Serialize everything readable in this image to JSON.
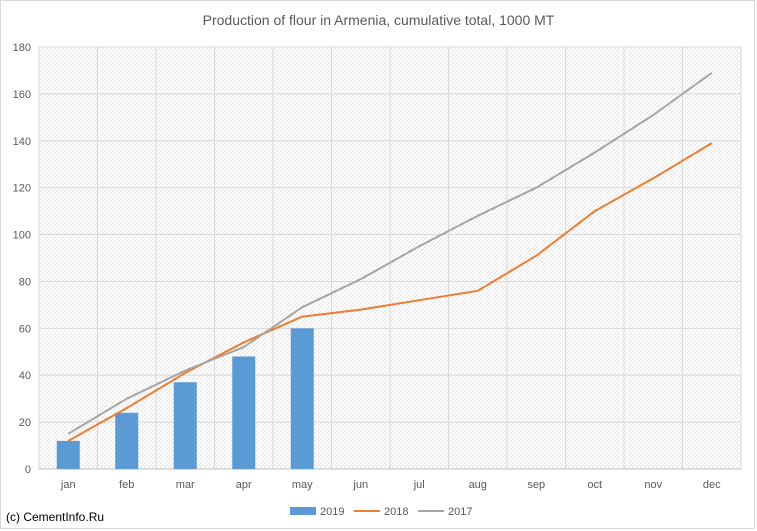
{
  "chart_data": {
    "type": "bar",
    "title": "Production of flour in Armenia, cumulative total, 1000 MT",
    "xlabel": "",
    "ylabel": "",
    "ylim": [
      0,
      180
    ],
    "yticks": [
      0,
      20,
      40,
      60,
      80,
      100,
      120,
      140,
      160,
      180
    ],
    "categories": [
      "jan",
      "feb",
      "mar",
      "apr",
      "may",
      "jun",
      "jul",
      "aug",
      "sep",
      "oct",
      "nov",
      "dec"
    ],
    "grid": true,
    "legend_position": "bottom",
    "series": [
      {
        "name": "2019",
        "kind": "bar",
        "color": "#5b9bd5",
        "values": [
          12,
          24,
          37,
          48,
          60,
          null,
          null,
          null,
          null,
          null,
          null,
          null
        ]
      },
      {
        "name": "2018",
        "kind": "line",
        "color": "#ed7d31",
        "values": [
          12,
          26,
          41,
          54,
          65,
          68,
          72,
          76,
          91,
          110,
          124,
          139
        ]
      },
      {
        "name": "2017",
        "kind": "line",
        "color": "#a5a5a5",
        "values": [
          15,
          30,
          42,
          52,
          69,
          81,
          95,
          108,
          120,
          135,
          151,
          169
        ]
      }
    ]
  },
  "credit": "(c) CementInfo.Ru"
}
